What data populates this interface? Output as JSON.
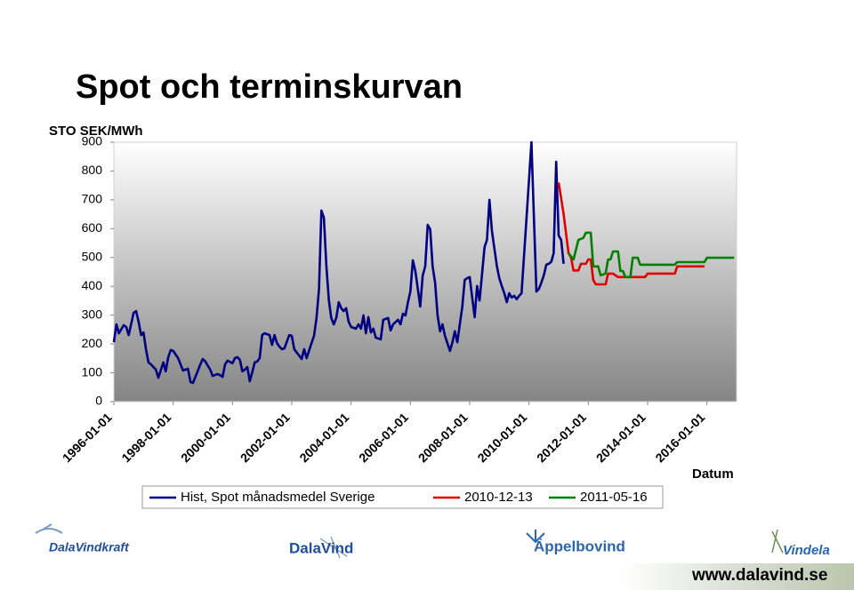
{
  "chart_data": {
    "type": "line",
    "title": "Spot och terminskurvan",
    "y_label": "STO SEK/MWh",
    "x_label": "Datum",
    "xlim": [
      "1996-01-01",
      "2017-01-01"
    ],
    "xticks": [
      "1996-01-01",
      "1998-01-01",
      "2000-01-01",
      "2002-01-01",
      "2004-01-01",
      "2006-01-01",
      "2008-01-01",
      "2010-01-01",
      "2012-01-01",
      "2014-01-01",
      "2016-01-01"
    ],
    "ylim": [
      0,
      900
    ],
    "yticks": [
      0,
      100,
      200,
      300,
      400,
      500,
      600,
      700,
      800,
      900
    ],
    "legend": "bottom",
    "series": [
      {
        "name": "Hist, Spot månadsmedel Sverige",
        "color": "#000080",
        "x": [
          "1996-01-01",
          "1996-02-01",
          "1996-03-01",
          "1996-05-01",
          "1996-06-01",
          "1996-07-01",
          "1996-09-01",
          "1996-10-01",
          "1996-11-01",
          "1996-12-01",
          "1997-01-01",
          "1997-02-01",
          "1997-03-01",
          "1997-04-01",
          "1997-06-01",
          "1997-07-01",
          "1997-09-01",
          "1997-10-01",
          "1997-11-01",
          "1997-12-01",
          "1998-01-01",
          "1998-03-01",
          "1998-04-01",
          "1998-05-01",
          "1998-07-01",
          "1998-08-01",
          "1998-09-01",
          "1998-10-01",
          "1998-12-01",
          "1999-01-01",
          "1999-02-01",
          "1999-04-01",
          "1999-05-01",
          "1999-07-01",
          "1999-08-01",
          "1999-09-01",
          "1999-10-01",
          "1999-11-01",
          "2000-01-01",
          "2000-02-01",
          "2000-03-01",
          "2000-04-01",
          "2000-05-01",
          "2000-06-01",
          "2000-07-01",
          "2000-08-01",
          "2000-09-01",
          "2000-10-01",
          "2000-11-01",
          "2000-12-01",
          "2001-01-01",
          "2001-02-01",
          "2001-04-01",
          "2001-05-01",
          "2001-06-01",
          "2001-07-01",
          "2001-08-01",
          "2001-09-01",
          "2001-10-01",
          "2001-12-01",
          "2002-01-01",
          "2002-02-01",
          "2002-03-01",
          "2002-04-01",
          "2002-05-01",
          "2002-06-01",
          "2002-07-01",
          "2002-09-01",
          "2002-10-01",
          "2002-11-01",
          "2002-12-01",
          "2003-01-01",
          "2003-02-01",
          "2003-03-01",
          "2003-04-01",
          "2003-05-01",
          "2003-06-01",
          "2003-07-01",
          "2003-08-01",
          "2003-09-01",
          "2003-10-01",
          "2003-11-01",
          "2003-12-01",
          "2004-01-01",
          "2004-03-01",
          "2004-04-01",
          "2004-05-01",
          "2004-06-01",
          "2004-07-01",
          "2004-08-01",
          "2004-09-01",
          "2004-10-01",
          "2004-11-01",
          "2005-01-01",
          "2005-02-01",
          "2005-04-01",
          "2005-05-01",
          "2005-06-01",
          "2005-08-01",
          "2005-09-01",
          "2005-10-01",
          "2005-11-01",
          "2005-12-01",
          "2006-01-01",
          "2006-02-01",
          "2006-03-01",
          "2006-05-01",
          "2006-06-01",
          "2006-07-01",
          "2006-08-01",
          "2006-09-01",
          "2006-10-01",
          "2006-11-01",
          "2006-12-01",
          "2007-01-01",
          "2007-02-01",
          "2007-03-01",
          "2007-05-01",
          "2007-06-01",
          "2007-07-01",
          "2007-08-01",
          "2007-09-01",
          "2007-10-01",
          "2007-11-01",
          "2007-12-01",
          "2008-01-01",
          "2008-02-01",
          "2008-03-01",
          "2008-04-01",
          "2008-05-01",
          "2008-07-01",
          "2008-08-01",
          "2008-09-01",
          "2008-10-01",
          "2008-11-01",
          "2008-12-01",
          "2009-01-01",
          "2009-02-01",
          "2009-03-01",
          "2009-04-01",
          "2009-05-01",
          "2009-06-01",
          "2009-07-01",
          "2009-08-01",
          "2009-09-01",
          "2009-10-01",
          "2009-12-01",
          "2010-02-01",
          "2010-03-01",
          "2010-04-01",
          "2010-05-01",
          "2010-06-01",
          "2010-07-01",
          "2010-08-01",
          "2010-09-01",
          "2010-10-01",
          "2010-11-01",
          "2010-12-01",
          "2011-01-01",
          "2011-02-01",
          "2011-03-01"
        ],
        "values": [
          206,
          268,
          237,
          265,
          259,
          231,
          308,
          314,
          277,
          231,
          240,
          182,
          136,
          129,
          111,
          83,
          136,
          105,
          154,
          179,
          176,
          151,
          129,
          108,
          114,
          68,
          65,
          86,
          129,
          148,
          139,
          111,
          89,
          96,
          92,
          86,
          129,
          142,
          133,
          151,
          154,
          145,
          105,
          111,
          120,
          71,
          102,
          136,
          139,
          151,
          231,
          237,
          231,
          197,
          231,
          203,
          191,
          182,
          185,
          231,
          228,
          182,
          170,
          160,
          148,
          182,
          151,
          203,
          228,
          290,
          391,
          663,
          638,
          469,
          351,
          290,
          268,
          290,
          345,
          324,
          314,
          324,
          277,
          259,
          253,
          268,
          253,
          299,
          237,
          293,
          240,
          253,
          222,
          216,
          284,
          290,
          247,
          268,
          284,
          268,
          305,
          299,
          345,
          382,
          490,
          453,
          330,
          438,
          469,
          613,
          598,
          469,
          413,
          299,
          244,
          268,
          228,
          176,
          206,
          244,
          206,
          268,
          330,
          422,
          428,
          432,
          361,
          293,
          401,
          351,
          536,
          561,
          700,
          592,
          530,
          469,
          428,
          401,
          376,
          345,
          376,
          361,
          367,
          355,
          367,
          376,
          638,
          900,
          638,
          382,
          391,
          413,
          438,
          475,
          478,
          485,
          515,
          832,
          576,
          561,
          478
        ]
      },
      {
        "name": "2010-12-13",
        "color": "#e00000",
        "x": [
          "2011-01-01",
          "2011-03-01",
          "2011-05-01",
          "2011-06-01",
          "2011-07-01",
          "2011-09-01",
          "2011-10-01",
          "2011-12-01",
          "2012-01-01",
          "2012-02-01",
          "2012-03-01",
          "2012-04-01",
          "2012-08-01",
          "2012-09-01",
          "2012-11-01",
          "2013-01-01",
          "2013-12-01",
          "2014-01-01",
          "2014-12-01",
          "2015-01-01",
          "2015-12-01"
        ],
        "values": [
          760,
          650,
          515,
          500,
          455,
          455,
          478,
          478,
          493,
          493,
          422,
          407,
          407,
          444,
          444,
          432,
          432,
          444,
          444,
          469,
          469
        ]
      },
      {
        "name": "2011-05-16",
        "color": "#008000",
        "x": [
          "2011-05-01",
          "2011-07-01",
          "2011-09-01",
          "2011-11-01",
          "2011-12-01",
          "2012-02-01",
          "2012-03-01",
          "2012-05-01",
          "2012-06-01",
          "2012-08-01",
          "2012-09-01",
          "2012-10-01",
          "2012-11-01",
          "2013-01-01",
          "2013-02-01",
          "2013-03-01",
          "2013-04-01",
          "2013-06-01",
          "2013-07-01",
          "2013-09-01",
          "2013-10-01",
          "2014-12-01",
          "2015-01-01",
          "2015-12-01",
          "2016-01-01",
          "2016-12-01"
        ],
        "values": [
          515,
          493,
          561,
          568,
          586,
          586,
          469,
          469,
          438,
          444,
          493,
          493,
          521,
          521,
          453,
          453,
          432,
          432,
          499,
          499,
          475,
          475,
          484,
          484,
          499,
          499
        ]
      }
    ]
  },
  "footer": {
    "logos": [
      "DalaVindkraft",
      "DalaVind",
      "Äppelbovind",
      "Vindela"
    ],
    "url": "www.dalavind.se"
  }
}
